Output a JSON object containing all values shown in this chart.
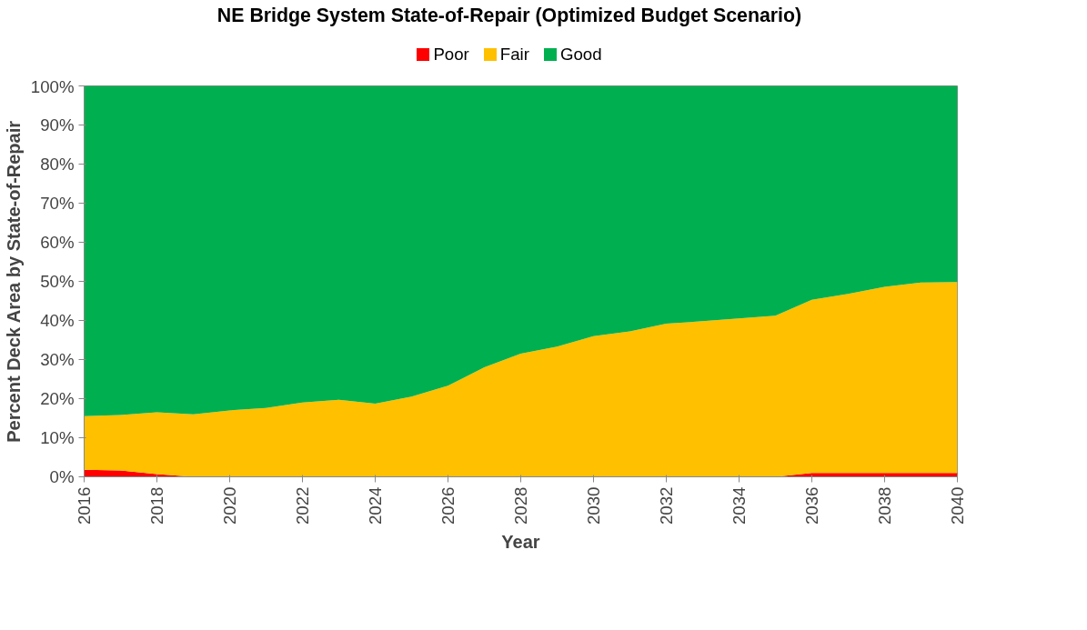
{
  "chart_data": {
    "type": "area",
    "stacked": true,
    "title": "NE Bridge System  State-of-Repair (Optimized Budget Scenario)",
    "xlabel": "Year",
    "ylabel": "Percent Deck Area by State-of-Repair",
    "x": [
      2016,
      2017,
      2018,
      2019,
      2020,
      2021,
      2022,
      2023,
      2024,
      2025,
      2026,
      2027,
      2028,
      2029,
      2030,
      2031,
      2032,
      2033,
      2034,
      2035,
      2036,
      2037,
      2038,
      2039,
      2040
    ],
    "series": [
      {
        "name": "Poor",
        "color": "#ff0000",
        "values": [
          1.8,
          1.6,
          0.7,
          0,
          0,
          0,
          0,
          0,
          0,
          0,
          0,
          0,
          0,
          0,
          0,
          0,
          0,
          0,
          0,
          0,
          1,
          1,
          1,
          1,
          1
        ]
      },
      {
        "name": "Fair",
        "color": "#ffc000",
        "values": [
          13.7,
          14.2,
          15.8,
          16.0,
          17.0,
          17.6,
          19.0,
          19.7,
          18.7,
          20.5,
          23.3,
          28.0,
          31.5,
          33.3,
          36.0,
          37.2,
          39.2,
          39.8,
          40.5,
          41.2,
          44.3,
          45.8,
          47.6,
          48.7,
          48.8
        ]
      },
      {
        "name": "Good",
        "color": "#00b050",
        "values": [
          84.5,
          84.2,
          83.5,
          84.0,
          83.0,
          82.4,
          81.0,
          80.3,
          81.3,
          79.5,
          76.7,
          72.0,
          68.5,
          66.7,
          64.0,
          62.8,
          60.8,
          60.2,
          59.5,
          58.8,
          54.7,
          53.2,
          51.4,
          50.3,
          50.2
        ]
      }
    ],
    "xlim": [
      2016,
      2040
    ],
    "xticks": [
      2016,
      2018,
      2020,
      2022,
      2024,
      2026,
      2028,
      2030,
      2032,
      2034,
      2036,
      2038,
      2040
    ],
    "ylim": [
      0,
      100
    ],
    "yticks": [
      {
        "value": 0,
        "label": "0%"
      },
      {
        "value": 10,
        "label": "10%"
      },
      {
        "value": 20,
        "label": "20%"
      },
      {
        "value": 30,
        "label": "30%"
      },
      {
        "value": 40,
        "label": "40%"
      },
      {
        "value": 50,
        "label": "50%"
      },
      {
        "value": 60,
        "label": "60%"
      },
      {
        "value": 70,
        "label": "70%"
      },
      {
        "value": 80,
        "label": "80%"
      },
      {
        "value": 90,
        "label": "90%"
      },
      {
        "value": 100,
        "label": "100%"
      }
    ],
    "grid": false,
    "legend": "top"
  }
}
